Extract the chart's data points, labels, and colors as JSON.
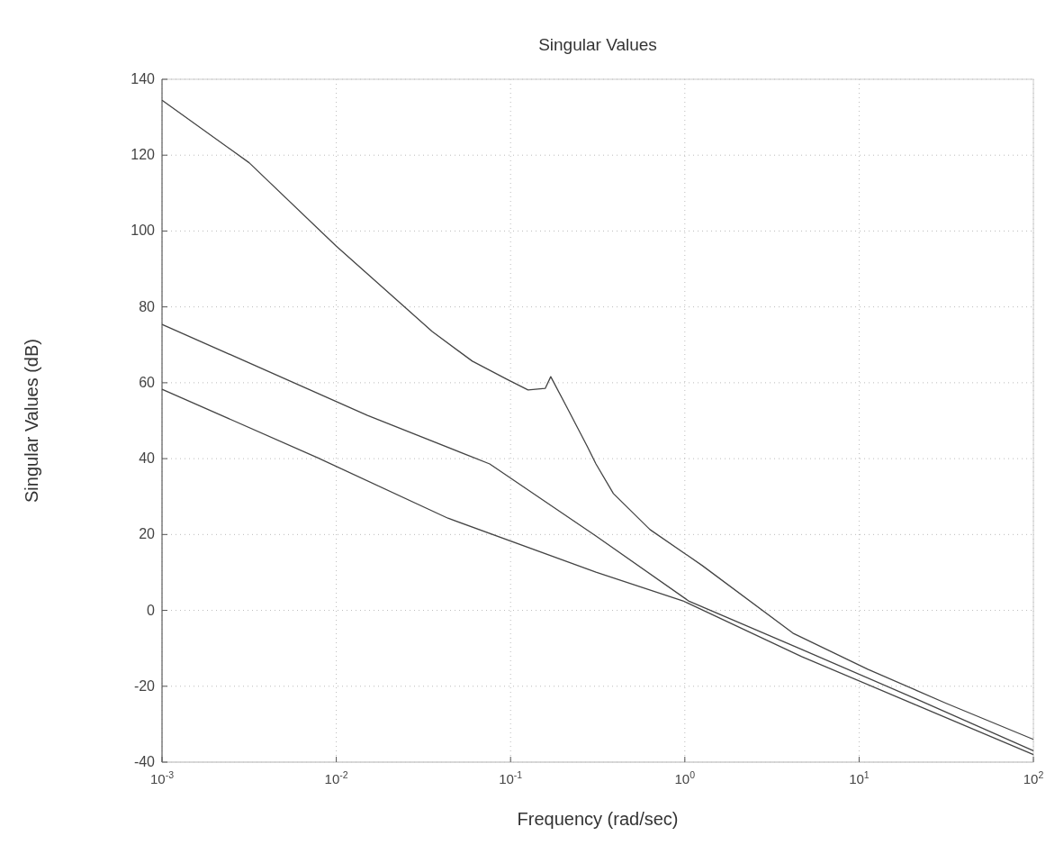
{
  "chart_data": {
    "type": "line",
    "title": "Singular Values",
    "xlabel": "Frequency (rad/sec)",
    "ylabel": "Singular Values (dB)",
    "log": "x",
    "grid": true,
    "line_style": "solid",
    "xlim": [
      0.001,
      100
    ],
    "ylim": [
      -40,
      140
    ],
    "xticks": [
      {
        "value": 0.001,
        "label": "10$^{-3}$"
      },
      {
        "value": 0.01,
        "label": "10$^{-2}$"
      },
      {
        "value": 0.1,
        "label": "10$^{-1}$"
      },
      {
        "value": 1,
        "label": "10$^{0}$"
      },
      {
        "value": 10,
        "label": "10$^{1}$"
      },
      {
        "value": 100,
        "label": "10$^{2}$"
      }
    ],
    "yticks": [
      -40,
      -20,
      0,
      20,
      40,
      60,
      80,
      100,
      120,
      140
    ],
    "series": [
      {
        "color": "#444444",
        "x": [
          0.001,
          0.00316,
          0.01,
          0.0355,
          0.0603,
          0.0955,
          0.126,
          0.158,
          0.17,
          0.209,
          0.275,
          0.309,
          0.389,
          0.631,
          1.26,
          4.17,
          11.2,
          31.6,
          100
        ],
        "values": [
          134.5,
          118,
          96,
          73.5,
          65.7,
          60.9,
          58.1,
          58.5,
          61.6,
          53.8,
          43.3,
          38.6,
          30.8,
          21.3,
          11.8,
          -6,
          -15.5,
          -24.5,
          -34
        ]
      },
      {
        "color": "#444444",
        "x": [
          0.001,
          0.0151,
          0.0759,
          0.309,
          1.05,
          4.68,
          21.4,
          100
        ],
        "values": [
          75.4,
          51.4,
          38.6,
          19.6,
          2.5,
          -10.3,
          -23.4,
          -37
        ]
      },
      {
        "color": "#444444",
        "x": [
          0.001,
          0.00776,
          0.0437,
          0.309,
          0.977,
          4.68,
          21.4,
          100
        ],
        "values": [
          58.3,
          40.3,
          24.3,
          10.1,
          2.5,
          -12.2,
          -25,
          -38
        ]
      }
    ]
  }
}
